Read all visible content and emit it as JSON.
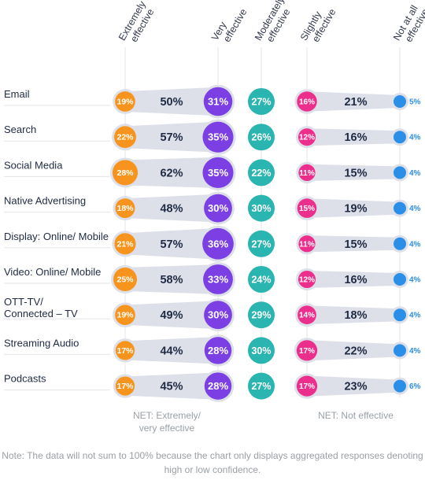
{
  "chart_data": {
    "type": "bubble-matrix",
    "columns": [
      "Extremely effective",
      "NET: Extremely/very effective",
      "Very effective",
      "Moderately effective",
      "Slightly effective",
      "NET: Not effective",
      "Not at all effective"
    ],
    "column_headers": [
      {
        "key": "extremely",
        "lines": [
          "Extremely",
          "effective"
        ]
      },
      {
        "key": "very",
        "lines": [
          "Very",
          "effective"
        ]
      },
      {
        "key": "moderately",
        "lines": [
          "Moderately",
          "effective"
        ]
      },
      {
        "key": "slightly",
        "lines": [
          "Slightly",
          "effective"
        ]
      },
      {
        "key": "not_at_all",
        "lines": [
          "Not at all",
          "effective"
        ]
      }
    ],
    "rows": [
      {
        "label": [
          "Email"
        ],
        "extremely": "19%",
        "net_high": "50%",
        "very": "31%",
        "moderately": "27%",
        "slightly": "16%",
        "net_low": "21%",
        "not_at_all": "5%"
      },
      {
        "label": [
          "Search"
        ],
        "extremely": "22%",
        "net_high": "57%",
        "very": "35%",
        "moderately": "26%",
        "slightly": "12%",
        "net_low": "16%",
        "not_at_all": "4%"
      },
      {
        "label": [
          "Social Media"
        ],
        "extremely": "28%",
        "net_high": "62%",
        "very": "35%",
        "moderately": "22%",
        "slightly": "11%",
        "net_low": "15%",
        "not_at_all": "4%"
      },
      {
        "label": [
          "Native Advertising"
        ],
        "extremely": "18%",
        "net_high": "48%",
        "very": "30%",
        "moderately": "30%",
        "slightly": "15%",
        "net_low": "19%",
        "not_at_all": "4%"
      },
      {
        "label": [
          "Display: Online/ Mobile"
        ],
        "extremely": "21%",
        "net_high": "57%",
        "very": "36%",
        "moderately": "27%",
        "slightly": "11%",
        "net_low": "15%",
        "not_at_all": "4%"
      },
      {
        "label": [
          "Video: Online/ Mobile"
        ],
        "extremely": "25%",
        "net_high": "58%",
        "very": "33%",
        "moderately": "24%",
        "slightly": "12%",
        "net_low": "16%",
        "not_at_all": "4%"
      },
      {
        "label": [
          "OTT-TV/",
          "Connected – TV"
        ],
        "extremely": "19%",
        "net_high": "49%",
        "very": "30%",
        "moderately": "29%",
        "slightly": "14%",
        "net_low": "18%",
        "not_at_all": "4%"
      },
      {
        "label": [
          "Streaming Audio"
        ],
        "extremely": "17%",
        "net_high": "44%",
        "very": "28%",
        "moderately": "30%",
        "slightly": "17%",
        "net_low": "22%",
        "not_at_all": "4%"
      },
      {
        "label": [
          "Podcasts"
        ],
        "extremely": "17%",
        "net_high": "45%",
        "very": "28%",
        "moderately": "27%",
        "slightly": "17%",
        "net_low": "23%",
        "not_at_all": "6%"
      }
    ],
    "footer_labels": {
      "net_high": [
        "NET: Extremely/",
        "very effective"
      ],
      "net_low": [
        "NET: Not effective"
      ]
    },
    "colors": {
      "extremely": "#f7941d",
      "very": "#7b3fe4",
      "moderately": "#2bb5b0",
      "slightly": "#ec2f8c",
      "not_at_all": "#2b8fe8",
      "band": "#dde0e8",
      "net_text": "#1f2a44",
      "label_text": "#1f2a44",
      "muted_text": "#9aa0a6"
    }
  },
  "note": "Note: The data will not sum to 100% because the chart only displays aggregated responses denoting high or low confidence."
}
